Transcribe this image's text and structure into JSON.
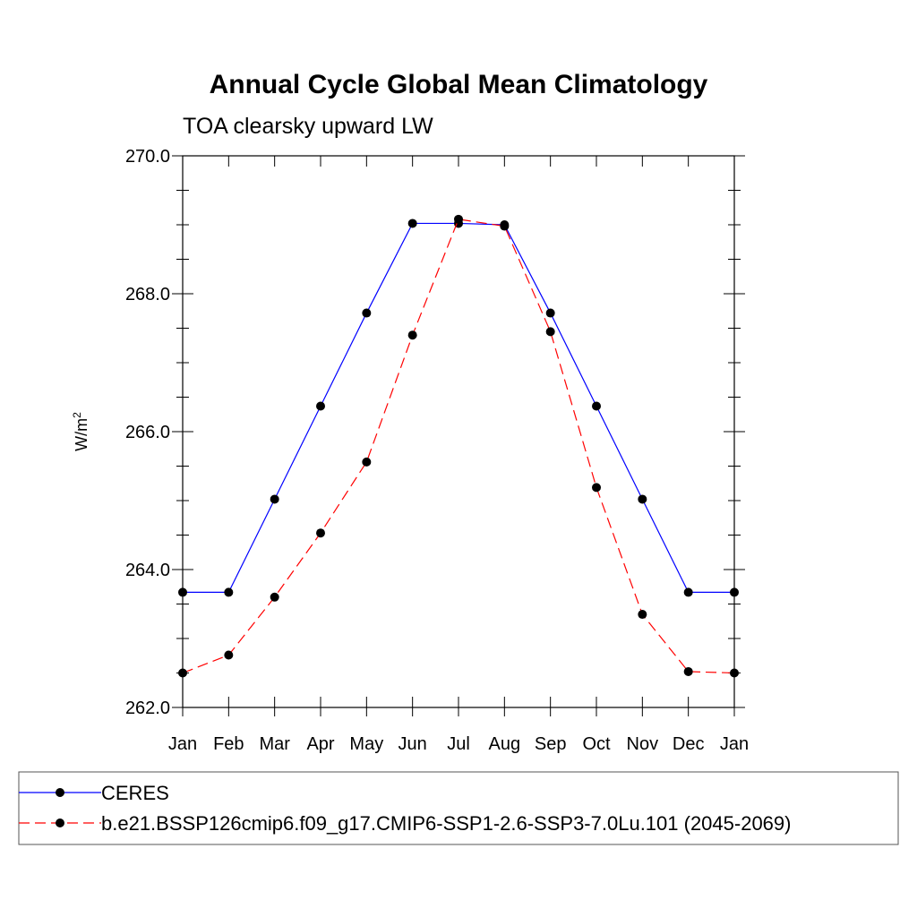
{
  "chart_data": {
    "type": "line",
    "title": "Annual Cycle Global Mean Climatology",
    "subtitle": "TOA clearsky upward LW",
    "ylabel": "W/m",
    "ylabel_superscript": "2",
    "xlabel": "",
    "ylim": [
      262.0,
      270.0
    ],
    "yticks": [
      262.0,
      264.0,
      266.0,
      268.0,
      270.0
    ],
    "ytick_labels": [
      "262.0",
      "264.0",
      "266.0",
      "268.0",
      "270.0"
    ],
    "categories": [
      "Jan",
      "Feb",
      "Mar",
      "Apr",
      "May",
      "Jun",
      "Jul",
      "Aug",
      "Sep",
      "Oct",
      "Nov",
      "Dec",
      "Jan"
    ],
    "series": [
      {
        "name": "CERES",
        "color": "#0000ff",
        "dash": "solid",
        "marker": "circle",
        "values": [
          263.67,
          263.67,
          265.02,
          266.37,
          267.72,
          269.02,
          269.02,
          269.0,
          267.72,
          266.37,
          265.02,
          263.67,
          263.67
        ]
      },
      {
        "name": "b.e21.BSSP126cmip6.f09_g17.CMIP6-SSP1-2.6-SSP3-7.0Lu.101 (2045-2069)",
        "color": "#ff0000",
        "dash": "dashed",
        "marker": "circle",
        "values": [
          262.5,
          262.76,
          263.6,
          264.53,
          265.56,
          267.4,
          269.08,
          268.98,
          267.45,
          265.19,
          263.35,
          262.52,
          262.5
        ]
      }
    ],
    "legend_position": "bottom"
  }
}
